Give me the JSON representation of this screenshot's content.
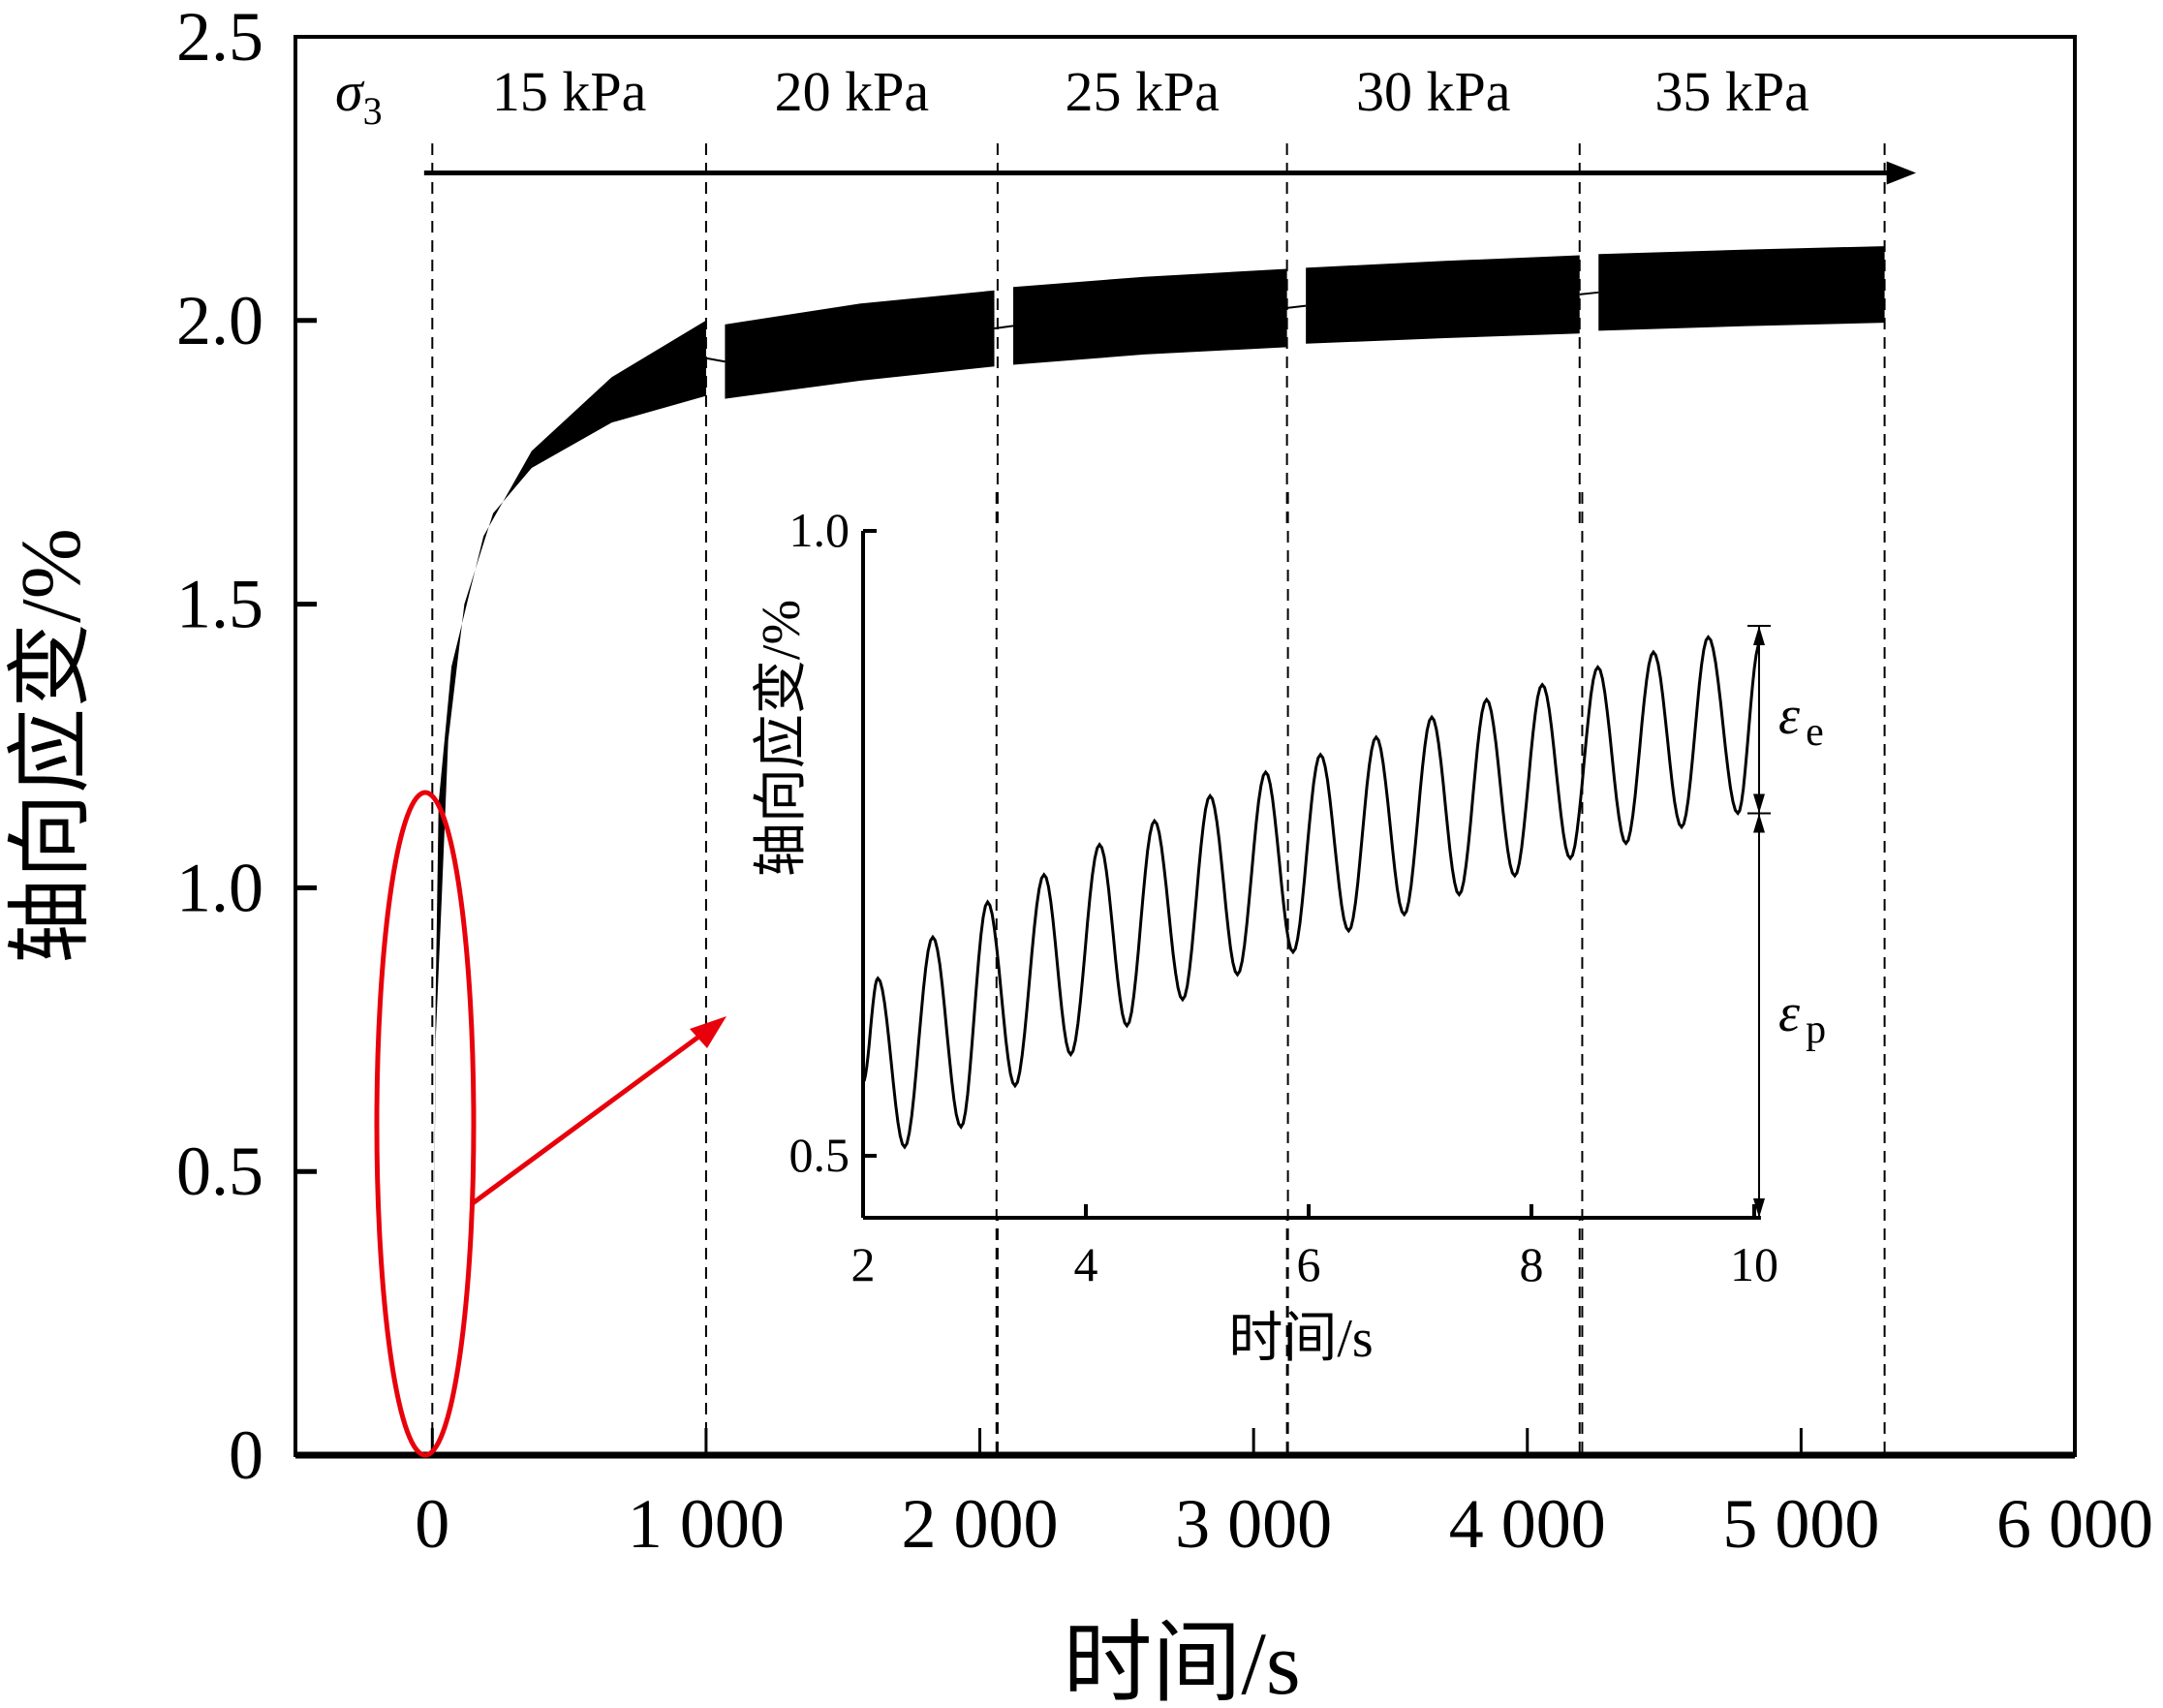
{
  "chart_data": [
    {
      "type": "area",
      "title": "",
      "xlabel": "时间/s",
      "ylabel": "轴向应变/%",
      "xlim": [
        -500,
        6000
      ],
      "ylim": [
        0,
        2.5
      ],
      "xticks": [
        0,
        1000,
        2000,
        3000,
        4000,
        5000,
        6000
      ],
      "xtick_labels": [
        "0",
        "1 000",
        "2 000",
        "3 000",
        "4 000",
        "5 000",
        "6 000"
      ],
      "yticks": [
        0,
        0.5,
        1.0,
        1.5,
        2.0,
        2.5
      ],
      "ytick_labels": [
        "0",
        "0.5",
        "1.0",
        "1.5",
        "2.0",
        "2.5"
      ],
      "grid": false,
      "stage_boundaries": [
        0,
        1000,
        2065,
        3122,
        4191,
        5305
      ],
      "confining_pressure": {
        "symbol": "σ",
        "subscript": "3",
        "stages": [
          "15 kPa",
          "20 kPa",
          "25 kPa",
          "30 kPa",
          "35 kPa"
        ],
        "arrow_y": 2.26
      },
      "series": [
        {
          "name": "15 kPa",
          "upper": [
            [
              5,
              0.26
            ],
            [
              12,
              0.8
            ],
            [
              23,
              1.15
            ],
            [
              70,
              1.39
            ],
            [
              187,
              1.62
            ],
            [
              363,
              1.77
            ],
            [
              655,
              1.9
            ],
            [
              1000,
              2.0
            ]
          ],
          "lower": [
            [
              5,
              0.26
            ],
            [
              12,
              0.73
            ],
            [
              35,
              0.99
            ],
            [
              58,
              1.26
            ],
            [
              117,
              1.5
            ],
            [
              222,
              1.66
            ],
            [
              363,
              1.74
            ],
            [
              655,
              1.82
            ],
            [
              1000,
              1.867
            ]
          ]
        },
        {
          "name": "20 kPa",
          "upper": [
            [
              1069,
              1.993
            ],
            [
              1565,
              2.03
            ],
            [
              2053,
              2.053
            ]
          ],
          "lower": [
            [
              1069,
              1.862
            ],
            [
              1565,
              1.894
            ],
            [
              2053,
              1.919
            ]
          ]
        },
        {
          "name": "25 kPa",
          "upper": [
            [
              2122,
              2.059
            ],
            [
              2600,
              2.077
            ],
            [
              3122,
              2.091
            ]
          ],
          "lower": [
            [
              2122,
              1.922
            ],
            [
              2600,
              1.94
            ],
            [
              3122,
              1.953
            ]
          ]
        },
        {
          "name": "30 kPa",
          "upper": [
            [
              3191,
              2.093
            ],
            [
              3700,
              2.105
            ],
            [
              4191,
              2.115
            ]
          ],
          "lower": [
            [
              3191,
              1.959
            ],
            [
              3700,
              1.969
            ],
            [
              4191,
              1.977
            ]
          ]
        },
        {
          "name": "35 kPa",
          "upper": [
            [
              4260,
              2.117
            ],
            [
              4800,
              2.125
            ],
            [
              5305,
              2.131
            ]
          ],
          "lower": [
            [
              4260,
              1.982
            ],
            [
              4800,
              1.99
            ],
            [
              5305,
              1.996
            ]
          ]
        }
      ],
      "highlight_color": "#e8000b"
    },
    {
      "type": "line",
      "title": "",
      "xlabel": "时间/s",
      "ylabel": "轴向应变/%",
      "xlim": [
        2,
        10.06
      ],
      "ylim": [
        0.45,
        1.0
      ],
      "xticks": [
        2,
        4,
        6,
        8,
        10
      ],
      "xtick_labels": [
        "2",
        "4",
        "6",
        "8",
        "10"
      ],
      "yticks": [
        0.5,
        1.0
      ],
      "ytick_labels": [
        "0.5",
        "1.0"
      ],
      "start": [
        2.0,
        0.559
      ],
      "peaks": [
        [
          2.133,
          0.642
        ],
        [
          2.626,
          0.675
        ],
        [
          3.118,
          0.703
        ],
        [
          3.624,
          0.725
        ],
        [
          4.123,
          0.749
        ],
        [
          4.616,
          0.768
        ],
        [
          5.115,
          0.788
        ],
        [
          5.614,
          0.807
        ],
        [
          6.106,
          0.821
        ],
        [
          6.606,
          0.835
        ],
        [
          7.105,
          0.851
        ],
        [
          7.597,
          0.865
        ],
        [
          8.097,
          0.877
        ],
        [
          8.596,
          0.891
        ],
        [
          9.095,
          0.903
        ],
        [
          9.587,
          0.915
        ]
      ],
      "troughs": [
        [
          2.373,
          0.507
        ],
        [
          2.879,
          0.523
        ],
        [
          3.364,
          0.556
        ],
        [
          3.864,
          0.581
        ],
        [
          4.369,
          0.604
        ],
        [
          4.869,
          0.625
        ],
        [
          5.361,
          0.645
        ],
        [
          5.86,
          0.663
        ],
        [
          6.359,
          0.68
        ],
        [
          6.858,
          0.693
        ],
        [
          7.351,
          0.709
        ],
        [
          7.85,
          0.724
        ],
        [
          8.349,
          0.738
        ],
        [
          8.849,
          0.75
        ],
        [
          9.348,
          0.763
        ],
        [
          9.853,
          0.774
        ]
      ],
      "end": [
        10.05,
        0.91
      ],
      "annotations": {
        "elastic": {
          "symbol": "ε",
          "subscript": "e",
          "range": [
            0.774,
            0.924
          ]
        },
        "plastic": {
          "symbol": "ε",
          "subscript": "p",
          "range": [
            0.45,
            0.774
          ]
        }
      }
    }
  ]
}
